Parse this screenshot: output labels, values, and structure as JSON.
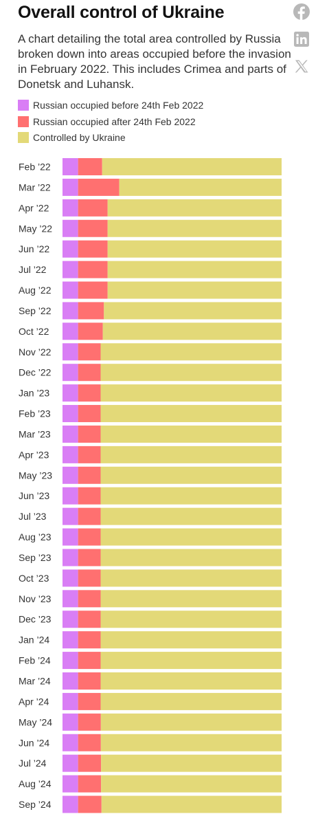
{
  "header": {
    "title": "Overall control of Ukraine",
    "subtitle": "A chart detailing the total area controlled by Russia broken down into areas occupied before the invasion in February 2022. This includes Crimea and parts of Donetsk and Luhansk."
  },
  "share": {
    "items": [
      {
        "icon": "facebook-icon"
      },
      {
        "icon": "linkedin-icon"
      },
      {
        "icon": "x-icon"
      }
    ],
    "color": "#b8b8b8"
  },
  "legend": {
    "items": [
      {
        "label": "Russian occupied before 24th Feb 2022",
        "color": "#d97ef5"
      },
      {
        "label": "Russian occupied after 24th Feb 2022",
        "color": "#ff7070"
      },
      {
        "label": "Controlled by Ukraine",
        "color": "#e3d978"
      }
    ]
  },
  "chart_data": {
    "type": "bar",
    "orientation": "horizontal",
    "stacked": true,
    "normalized_percent": true,
    "categories": [
      "Feb ’22",
      "Mar ’22",
      "Apr ’22",
      "May ’22",
      "Jun ’22",
      "Jul ’22",
      "Aug ’22",
      "Sep ’22",
      "Oct ’22",
      "Nov ’22",
      "Dec ’22",
      "Jan ’23",
      "Feb ’23",
      "Mar ’23",
      "Apr ’23",
      "May ’23",
      "Jun ’23",
      "Jul ’23",
      "Aug ’23",
      "Sep ’23",
      "Oct ’23",
      "Nov ’23",
      "Dec ’23",
      "Jan ’24",
      "Feb ’24",
      "Mar ’24",
      "Apr ’24",
      "May ’24",
      "Jun ’24",
      "Jul ’24",
      "Aug ’24",
      "Sep ’24"
    ],
    "series": [
      {
        "name": "Russian occupied before 24th Feb 2022",
        "color": "#d97ef5",
        "values": [
          7.1,
          7.1,
          7.1,
          7.1,
          7.1,
          7.1,
          7.1,
          7.1,
          7.1,
          7.1,
          7.1,
          7.1,
          7.1,
          7.1,
          7.1,
          7.1,
          7.1,
          7.1,
          7.1,
          7.1,
          7.1,
          7.1,
          7.1,
          7.1,
          7.1,
          7.1,
          7.1,
          7.1,
          7.1,
          7.1,
          7.1,
          7.1
        ]
      },
      {
        "name": "Russian occupied after 24th Feb 2022",
        "color": "#ff7070",
        "values": [
          11.0,
          18.8,
          13.5,
          13.5,
          13.5,
          13.5,
          13.5,
          11.8,
          11.3,
          10.3,
          10.3,
          10.3,
          10.3,
          10.3,
          10.3,
          10.3,
          10.3,
          10.3,
          10.3,
          10.3,
          10.3,
          10.3,
          10.3,
          10.3,
          10.3,
          10.3,
          10.3,
          10.4,
          10.4,
          10.5,
          10.5,
          10.7
        ]
      },
      {
        "name": "Controlled by Ukraine",
        "color": "#e3d978",
        "values": [
          81.9,
          74.1,
          79.4,
          79.4,
          79.4,
          79.4,
          79.4,
          81.1,
          81.6,
          82.6,
          82.6,
          82.6,
          82.6,
          82.6,
          82.6,
          82.6,
          82.6,
          82.6,
          82.6,
          82.6,
          82.6,
          82.6,
          82.6,
          82.6,
          82.6,
          82.6,
          82.6,
          82.5,
          82.5,
          82.4,
          82.4,
          82.2
        ]
      }
    ],
    "xlim": [
      0,
      100
    ],
    "grid": false
  }
}
